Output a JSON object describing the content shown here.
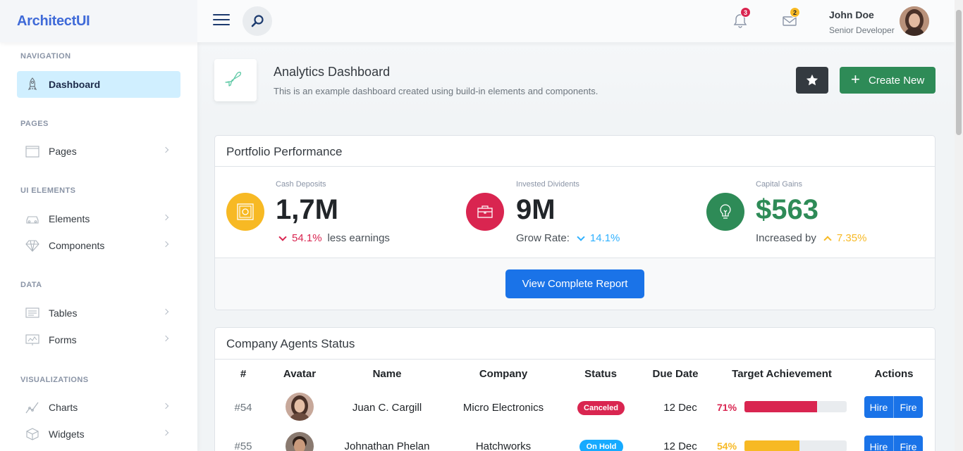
{
  "app": {
    "logo": "ArchitectUI"
  },
  "topbar": {
    "notifications_count": "3",
    "messages_count": "2",
    "user_name": "John Doe",
    "user_role": "Senior Developer"
  },
  "sidebar": {
    "sections": {
      "navigation": "NAVIGATION",
      "pages": "PAGES",
      "ui_elements": "UI ELEMENTS",
      "data": "DATA",
      "visualizations": "VISUALIZATIONS"
    },
    "items": {
      "dashboard": "Dashboard",
      "pages": "Pages",
      "elements": "Elements",
      "components": "Components",
      "tables": "Tables",
      "forms": "Forms",
      "charts": "Charts",
      "widgets": "Widgets"
    }
  },
  "page_header": {
    "title": "Analytics Dashboard",
    "subtitle": "This is an example dashboard created using build-in elements and components.",
    "create_label": "Create New"
  },
  "portfolio": {
    "title": "Portfolio Performance",
    "stats": [
      {
        "label": "Cash Deposits",
        "value": "1,7M",
        "change": "54.1%",
        "note": "less earnings",
        "prefix": "",
        "color": "#d92550"
      },
      {
        "label": "Invested Dividents",
        "value": "9M",
        "change": "14.1%",
        "note": "",
        "prefix": "Grow Rate:",
        "color": "#30b1ff"
      },
      {
        "label": "Capital Gains",
        "value": "$563",
        "change": "7.35%",
        "note": "",
        "prefix": "Increased by",
        "color": "#f7b924"
      }
    ],
    "report_button": "View Complete Report"
  },
  "agents": {
    "title": "Company Agents Status",
    "columns": [
      "#",
      "Avatar",
      "Name",
      "Company",
      "Status",
      "Due Date",
      "Target Achievement",
      "Actions"
    ],
    "rows": [
      {
        "id": "#54",
        "name": "Juan C. Cargill",
        "company": "Micro Electronics",
        "status": "Canceled",
        "status_color": "#d92550",
        "due": "12 Dec",
        "pct": "71%",
        "pct_value": 71,
        "bar_color": "#d92550",
        "pct_color": "#d92550",
        "hire": "Hire",
        "fire": "Fire"
      },
      {
        "id": "#55",
        "name": "Johnathan Phelan",
        "company": "Hatchworks",
        "status": "On Hold",
        "status_color": "#16aaff",
        "due": "12 Dec",
        "pct": "54%",
        "pct_value": 54,
        "bar_color": "#f7b924",
        "pct_color": "#f7b924",
        "hire": "Hire",
        "fire": "Fire"
      }
    ]
  }
}
